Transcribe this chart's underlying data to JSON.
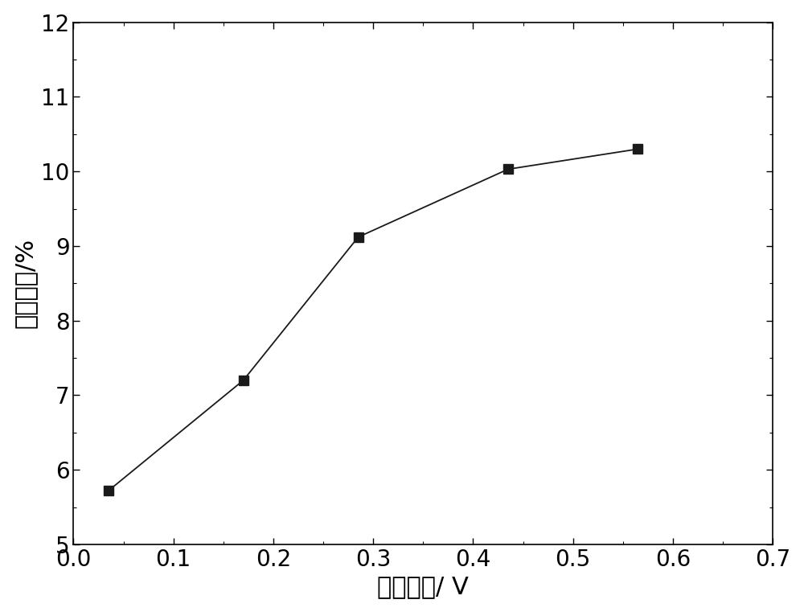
{
  "x": [
    0.035,
    0.17,
    0.285,
    0.435,
    0.565
  ],
  "y": [
    5.72,
    7.2,
    9.12,
    10.03,
    10.3
  ],
  "xlim": [
    0.0,
    0.7
  ],
  "ylim": [
    5.0,
    12.0
  ],
  "xticks": [
    0.0,
    0.1,
    0.2,
    0.3,
    0.4,
    0.5,
    0.6,
    0.7
  ],
  "yticks": [
    5,
    6,
    7,
    8,
    9,
    10,
    11,
    12
  ],
  "xlabel": "外加电压/ V",
  "ylabel": "库仓效率/%",
  "line_color": "#1a1a1a",
  "marker": "s",
  "marker_size": 8,
  "marker_color": "#1a1a1a",
  "linewidth": 1.3,
  "xlabel_fontsize": 22,
  "ylabel_fontsize": 22,
  "tick_fontsize": 20,
  "background_color": "#ffffff"
}
